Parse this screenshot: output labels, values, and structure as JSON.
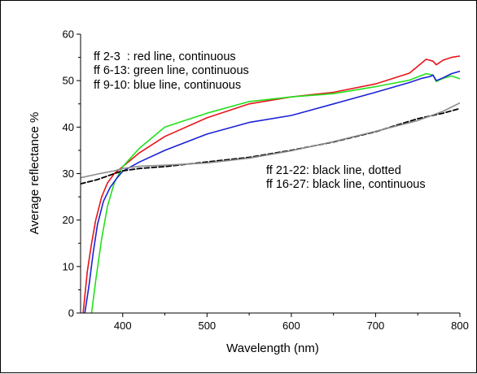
{
  "chart_data": {
    "type": "line",
    "title": "",
    "xlabel": "Wavelength (nm)",
    "ylabel": "Average reflectance %",
    "xlim": [
      350,
      800
    ],
    "ylim": [
      0,
      60
    ],
    "xticks": [
      400,
      500,
      600,
      700,
      800
    ],
    "yticks": [
      0,
      10,
      20,
      30,
      40,
      50,
      60
    ],
    "grid": false,
    "annotations": [
      "ff 2-3  : red line, continuous",
      "ff 6-13: green line, continuous",
      "ff 9-10: blue line, continuous",
      "ff 21-22: black line, dotted",
      "ff 16-27: black line, continuous"
    ],
    "series": [
      {
        "color": "#e8141a",
        "style": "solid",
        "x": [
          353,
          358,
          363,
          368,
          375,
          382,
          390,
          400,
          420,
          450,
          500,
          550,
          600,
          650,
          700,
          740,
          760,
          768,
          772,
          780,
          790,
          800
        ],
        "y": [
          0,
          9,
          15,
          20,
          25,
          28,
          30,
          31.5,
          34.5,
          38,
          42,
          45,
          46.5,
          47.5,
          49.3,
          51.6,
          54.6,
          54.2,
          53.4,
          54.4,
          55,
          55.3
        ]
      },
      {
        "color": "#22e01c",
        "style": "solid",
        "x": [
          363,
          368,
          375,
          382,
          390,
          400,
          420,
          450,
          500,
          550,
          600,
          650,
          700,
          740,
          760,
          768,
          772,
          780,
          790,
          800
        ],
        "y": [
          0,
          7,
          16,
          23,
          28,
          31.5,
          35.5,
          40,
          43,
          45.5,
          46.5,
          47.2,
          48.7,
          50.1,
          51.5,
          51.2,
          49.8,
          50.5,
          51,
          50.4
        ]
      },
      {
        "color": "#1a22d6",
        "style": "solid",
        "x": [
          355,
          360,
          365,
          370,
          377,
          385,
          393,
          400,
          420,
          450,
          500,
          550,
          600,
          650,
          700,
          740,
          755,
          765,
          768,
          772,
          780,
          790,
          800
        ],
        "y": [
          0,
          6,
          13,
          19,
          24,
          27,
          29,
          30.5,
          32.5,
          35,
          38.5,
          41,
          42.5,
          45,
          47.5,
          49.6,
          50.5,
          50.9,
          51.2,
          50,
          50.6,
          51.5,
          52
        ]
      },
      {
        "color": "#000000",
        "style": "dashed",
        "x": [
          350,
          370,
          390,
          400,
          420,
          450,
          500,
          550,
          600,
          650,
          700,
          750,
          780,
          800
        ],
        "y": [
          27.8,
          28.7,
          30,
          30.6,
          31.1,
          31.5,
          32.5,
          33.5,
          35,
          36.8,
          39,
          41.8,
          43,
          44
        ]
      },
      {
        "color": "#8c8c8c",
        "style": "solid",
        "x": [
          350,
          370,
          390,
          400,
          420,
          450,
          500,
          550,
          600,
          650,
          700,
          750,
          780,
          800
        ],
        "y": [
          29.1,
          29.9,
          30.6,
          31.1,
          31.6,
          31.8,
          32.3,
          33.3,
          34.9,
          36.9,
          39.1,
          41.4,
          43.4,
          45.2
        ]
      }
    ]
  }
}
